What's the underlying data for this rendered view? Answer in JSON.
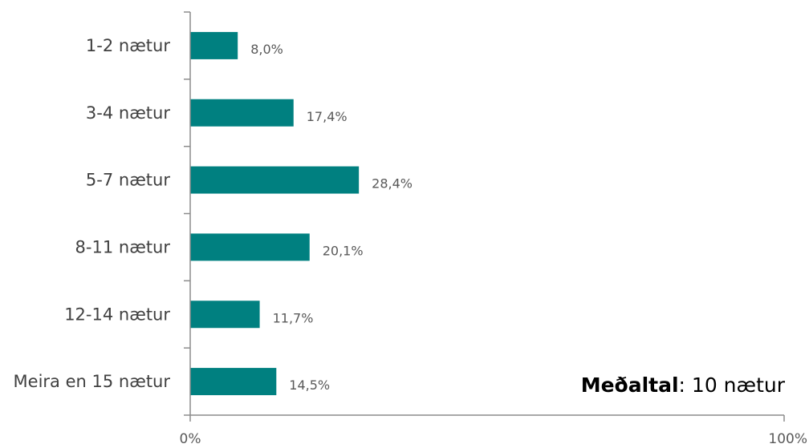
{
  "chart_data": {
    "type": "bar",
    "orientation": "horizontal",
    "categories": [
      "1-2 nætur",
      "3-4 nætur",
      "5-7 nætur",
      "8-11 nætur",
      "12-14 nætur",
      "Meira en 15 nætur"
    ],
    "values": [
      8.0,
      17.4,
      28.4,
      20.1,
      11.7,
      14.5
    ],
    "value_labels": [
      "8,0%",
      "17,4%",
      "28,4%",
      "20,1%",
      "11,7%",
      "14,5%"
    ],
    "xlim": [
      0,
      100
    ],
    "x_ticks": [
      "0%",
      "100%"
    ],
    "bar_color": "#008080",
    "grid": false
  },
  "annotation": {
    "bold": "Meðaltal",
    "rest": ": 10 nætur"
  }
}
